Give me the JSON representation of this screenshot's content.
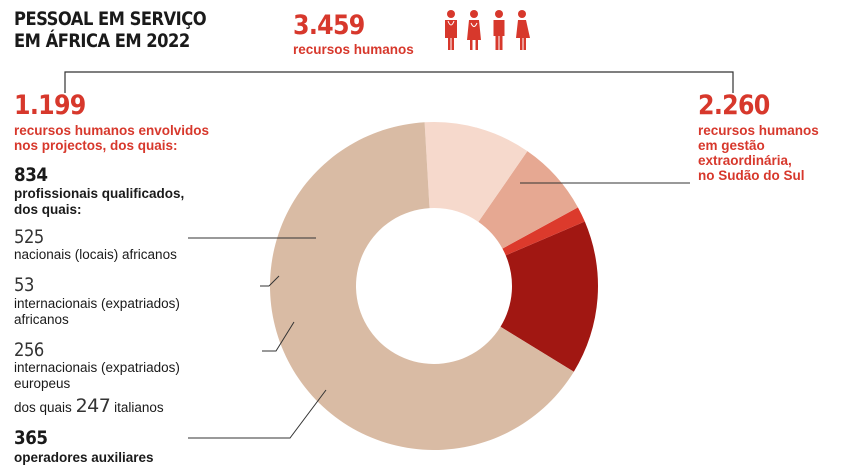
{
  "header": {
    "title_line1": "PESSOAL EM SERVIÇO",
    "title_line2": "EM ÁFRICA EM 2022",
    "total_value": "3.459",
    "total_label": "recursos humanos",
    "icons": [
      "doctor-icon",
      "nurse-icon",
      "man-icon",
      "woman-icon"
    ]
  },
  "left_group": {
    "value": "1.199",
    "label_line1": "recursos humanos envolvidos",
    "label_line2": "nos projectos, dos quais:"
  },
  "right_group": {
    "value": "2.260",
    "label_line1": "recursos humanos",
    "label_line2": "em gestão",
    "label_line3": "extraordinária,",
    "label_line4": "no Sudão do Sul"
  },
  "qualified": {
    "value": "834",
    "label_line1": "profissionais qualificados,",
    "label_line2": "dos quais:"
  },
  "breakdown": [
    {
      "value": "525",
      "label_line1": "nacionais (locais) africanos",
      "label_line2": ""
    },
    {
      "value": "53",
      "label_line1": "internacionais (expatriados)",
      "label_line2": "africanos"
    },
    {
      "value": "256",
      "label_line1": "internacionais (expatriados)",
      "label_line2": "europeus"
    }
  ],
  "italians": {
    "prefix": "dos quais",
    "value": "247",
    "suffix": "italianos"
  },
  "auxiliary": {
    "value": "365",
    "label": "operadores auxiliares"
  },
  "colors": {
    "accent": "#d7382c",
    "dark_red": "#a11712",
    "bright_red": "#dc3a2c",
    "salmon": "#e6a892",
    "light_pink": "#f6d9cc",
    "beige": "#d9bba4",
    "line": "#333333"
  },
  "chart_data": {
    "type": "pie",
    "donut": true,
    "total": 3459,
    "slices": [
      {
        "label": "nacionais (locais) africanos",
        "value": 525,
        "color": "#a11712"
      },
      {
        "label": "internacionais (expatriados) africanos",
        "value": 53,
        "color": "#dc3a2c"
      },
      {
        "label": "internacionais (expatriados) europeus",
        "value": 256,
        "color": "#e6a892"
      },
      {
        "label": "operadores auxiliares",
        "value": 365,
        "color": "#f6d9cc"
      },
      {
        "label": "recursos humanos em gestão extraordinária, no Sudão do Sul",
        "value": 2260,
        "color": "#d9bba4"
      }
    ]
  }
}
